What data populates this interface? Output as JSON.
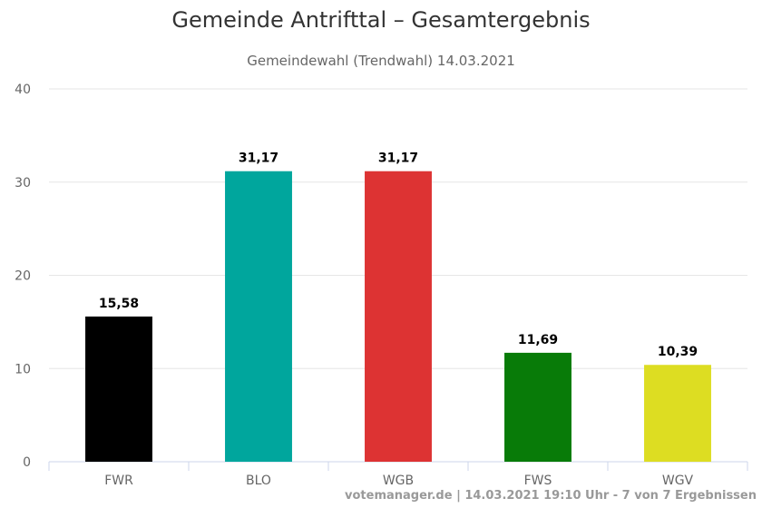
{
  "chart_data": {
    "type": "bar",
    "title": "Gemeinde Antrifttal – Gesamtergebnis",
    "subtitle": "Gemeindewahl (Trendwahl) 14.03.2021",
    "categories": [
      "FWR",
      "BLO",
      "WGB",
      "FWS",
      "WGV"
    ],
    "values": [
      15.58,
      31.17,
      31.17,
      11.69,
      10.39
    ],
    "value_labels": [
      "15,58",
      "31,17",
      "31,17",
      "11,69",
      "10,39"
    ],
    "colors": [
      "#000000",
      "#00a69d",
      "#dd3333",
      "#087b08",
      "#dddd22"
    ],
    "ylim": [
      0,
      40
    ],
    "yticks": [
      0,
      10,
      20,
      30,
      40
    ],
    "grid": true,
    "legend": "none"
  },
  "credits": "votemanager.de | 14.03.2021 19:10 Uhr - 7 von 7 Ergebnissen"
}
